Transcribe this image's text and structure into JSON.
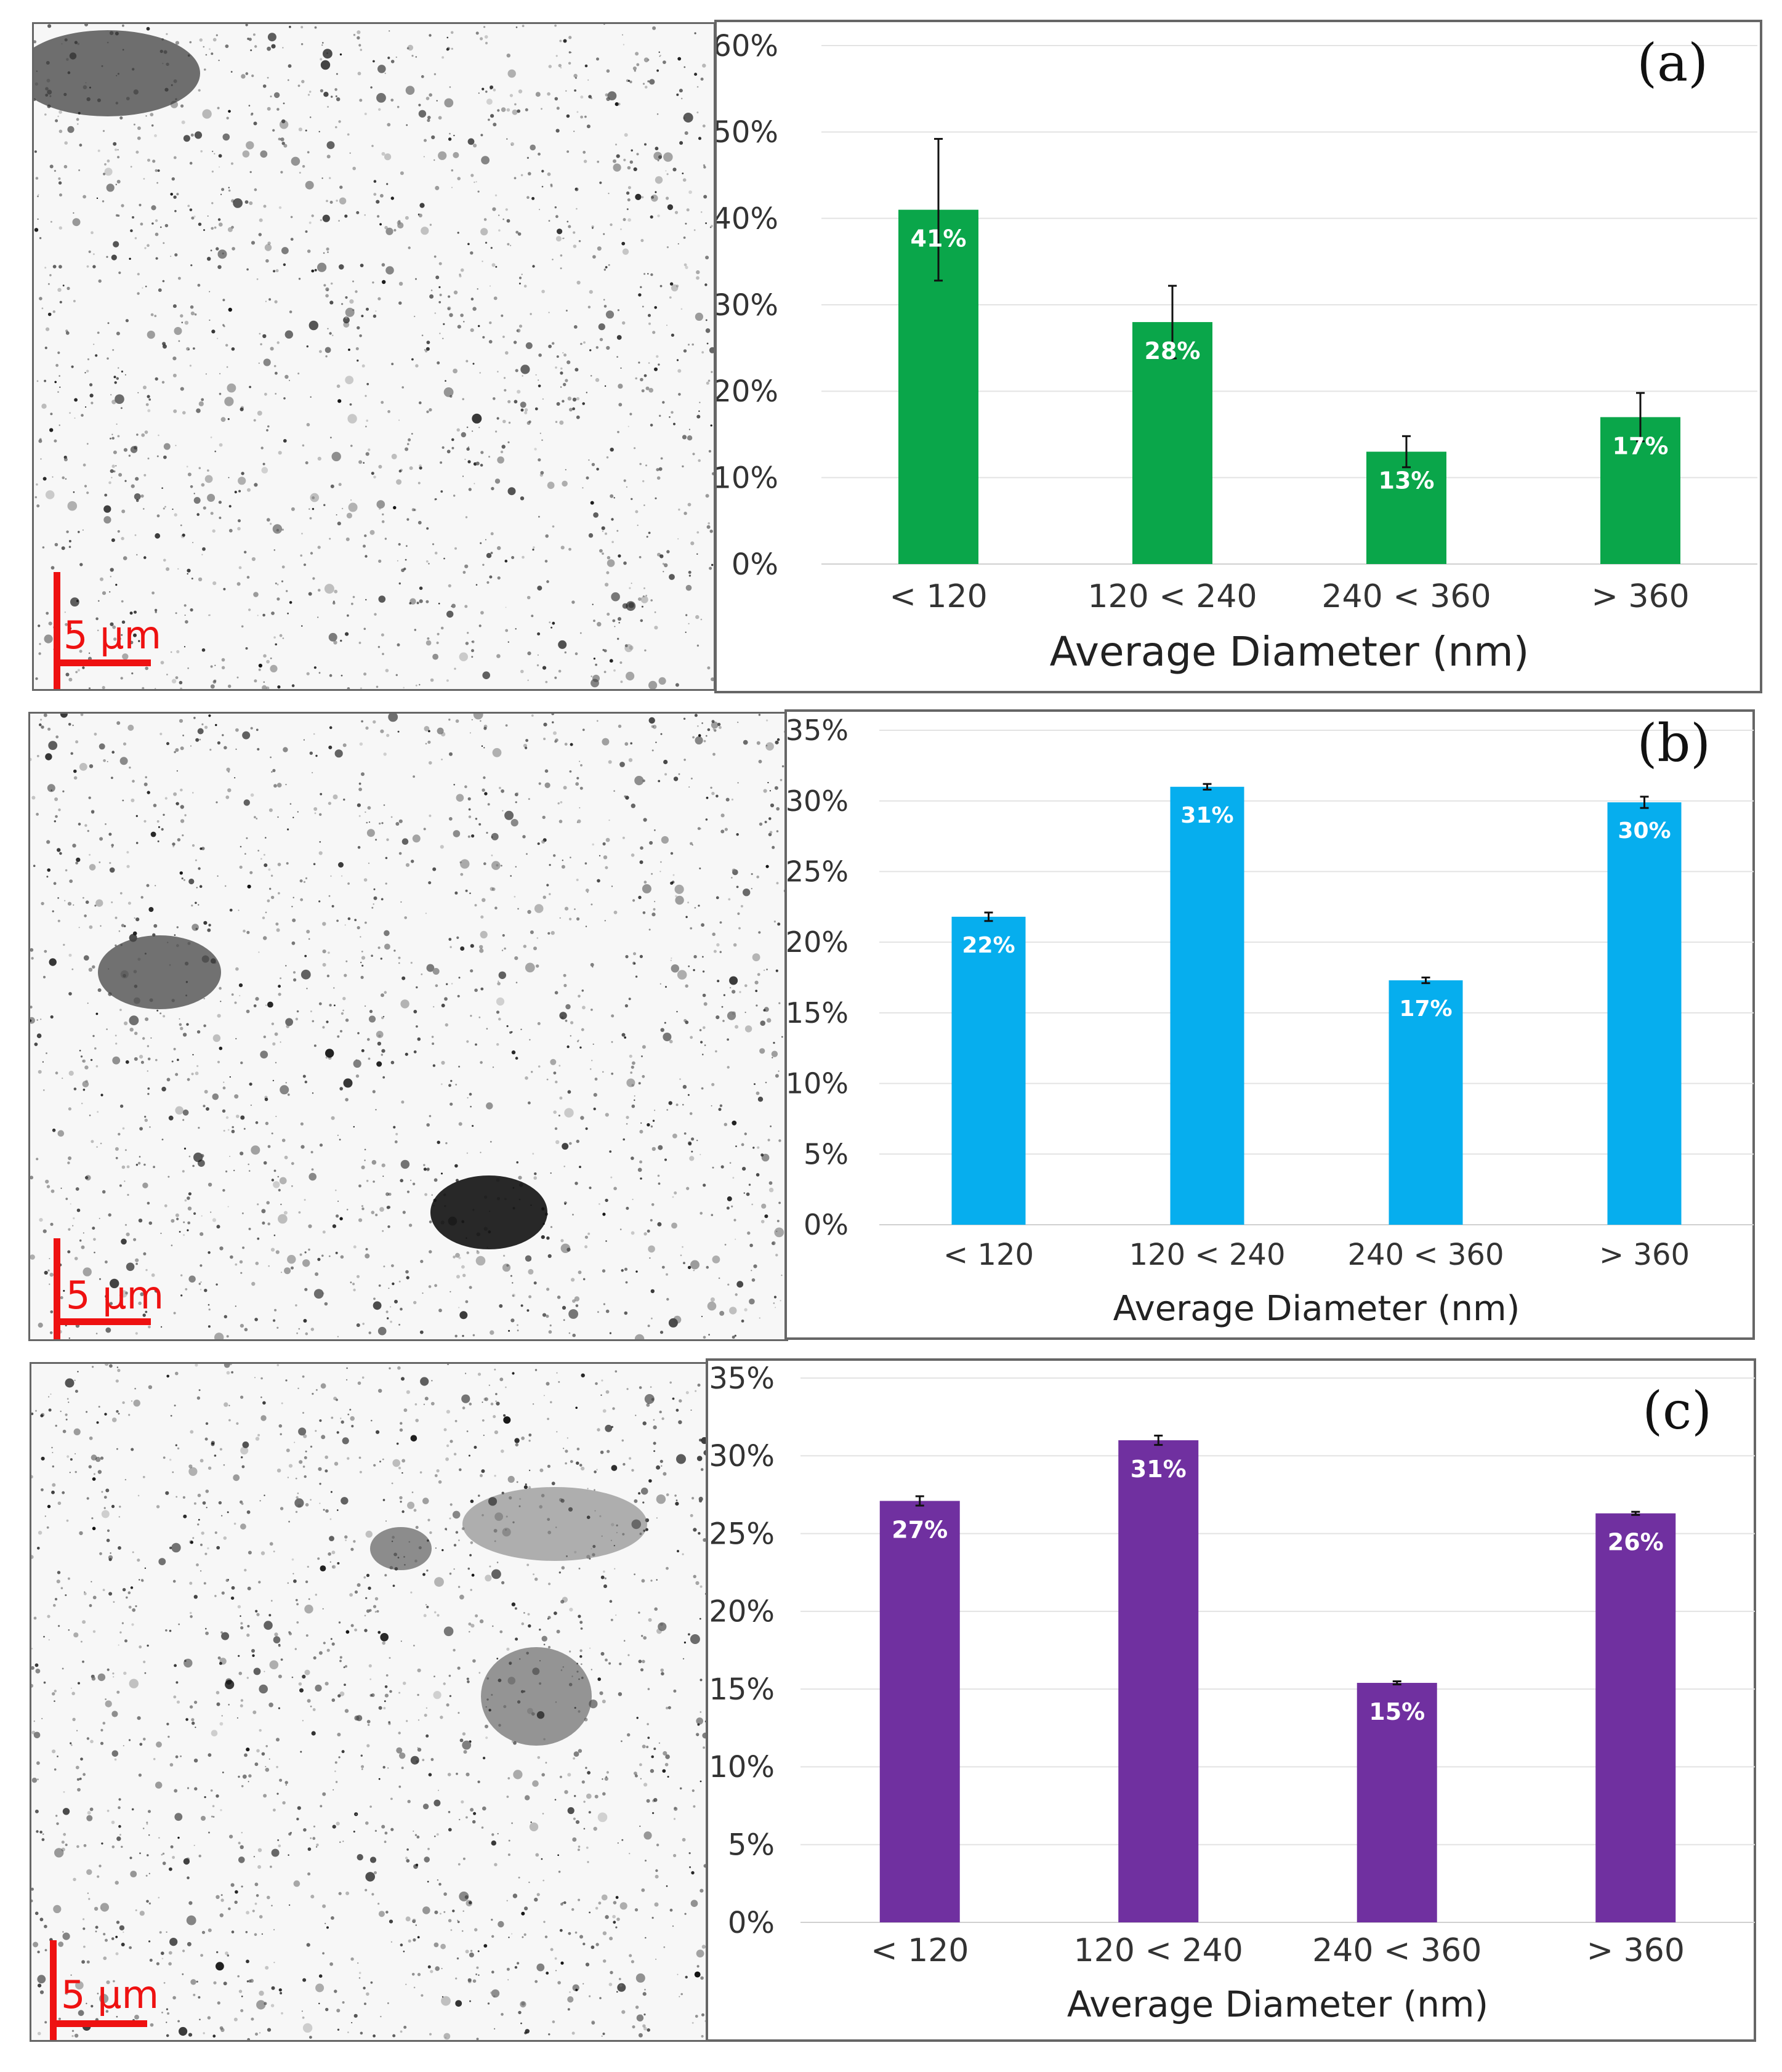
{
  "colors": {
    "series_a": "#0aa64a",
    "series_b": "#06aeee",
    "series_c": "#7030a0",
    "scalebar": "#ee1111",
    "grid": "#e3e3e3",
    "text": "#333333"
  },
  "micrographs": [
    {
      "scale_label": "5 μm"
    },
    {
      "scale_label": "5 μm"
    },
    {
      "scale_label": "5 μm"
    }
  ],
  "chart_data": [
    {
      "type": "bar",
      "panel_label": "(a)",
      "categories": [
        "< 120",
        "120 < 240",
        "240 < 360",
        "> 360"
      ],
      "values": [
        41,
        28,
        13,
        17
      ],
      "errors": [
        8.2,
        4.2,
        1.8,
        2.8
      ],
      "data_labels": [
        "41%",
        "28%",
        "13%",
        "17%"
      ],
      "xlabel": "Average Diameter (nm)",
      "ylabel": "",
      "ylim": [
        0,
        60
      ],
      "yticks": [
        0,
        10,
        20,
        30,
        40,
        50,
        60
      ],
      "ytick_labels": [
        "0%",
        "10%",
        "20%",
        "30%",
        "40%",
        "50%",
        "60%"
      ],
      "color": "#0aa64a",
      "grid": true
    },
    {
      "type": "bar",
      "panel_label": "(b)",
      "categories": [
        "< 120",
        "120 < 240",
        "240 < 360",
        "> 360"
      ],
      "values": [
        21.8,
        31,
        17.3,
        29.9
      ],
      "errors": [
        0.3,
        0.2,
        0.2,
        0.4
      ],
      "data_labels": [
        "22%",
        "31%",
        "17%",
        "30%"
      ],
      "xlabel": "Average Diameter (nm)",
      "ylabel": "",
      "ylim": [
        0,
        35
      ],
      "yticks": [
        0,
        5,
        10,
        15,
        20,
        25,
        30,
        35
      ],
      "ytick_labels": [
        "0%",
        "5%",
        "10%",
        "15%",
        "20%",
        "25%",
        "30%",
        "35%"
      ],
      "color": "#06aeee",
      "grid": true
    },
    {
      "type": "bar",
      "panel_label": "(c)",
      "categories": [
        "< 120",
        "120 < 240",
        "240 < 360",
        "> 360"
      ],
      "values": [
        27.1,
        31,
        15.4,
        26.3
      ],
      "errors": [
        0.3,
        0.3,
        0.1,
        0.1
      ],
      "data_labels": [
        "27%",
        "31%",
        "15%",
        "26%"
      ],
      "xlabel": "Average Diameter (nm)",
      "ylabel": "",
      "ylim": [
        0,
        35
      ],
      "yticks": [
        0,
        5,
        10,
        15,
        20,
        25,
        30,
        35
      ],
      "ytick_labels": [
        "0%",
        "5%",
        "10%",
        "15%",
        "20%",
        "25%",
        "30%",
        "35%"
      ],
      "color": "#7030a0",
      "grid": true
    }
  ]
}
